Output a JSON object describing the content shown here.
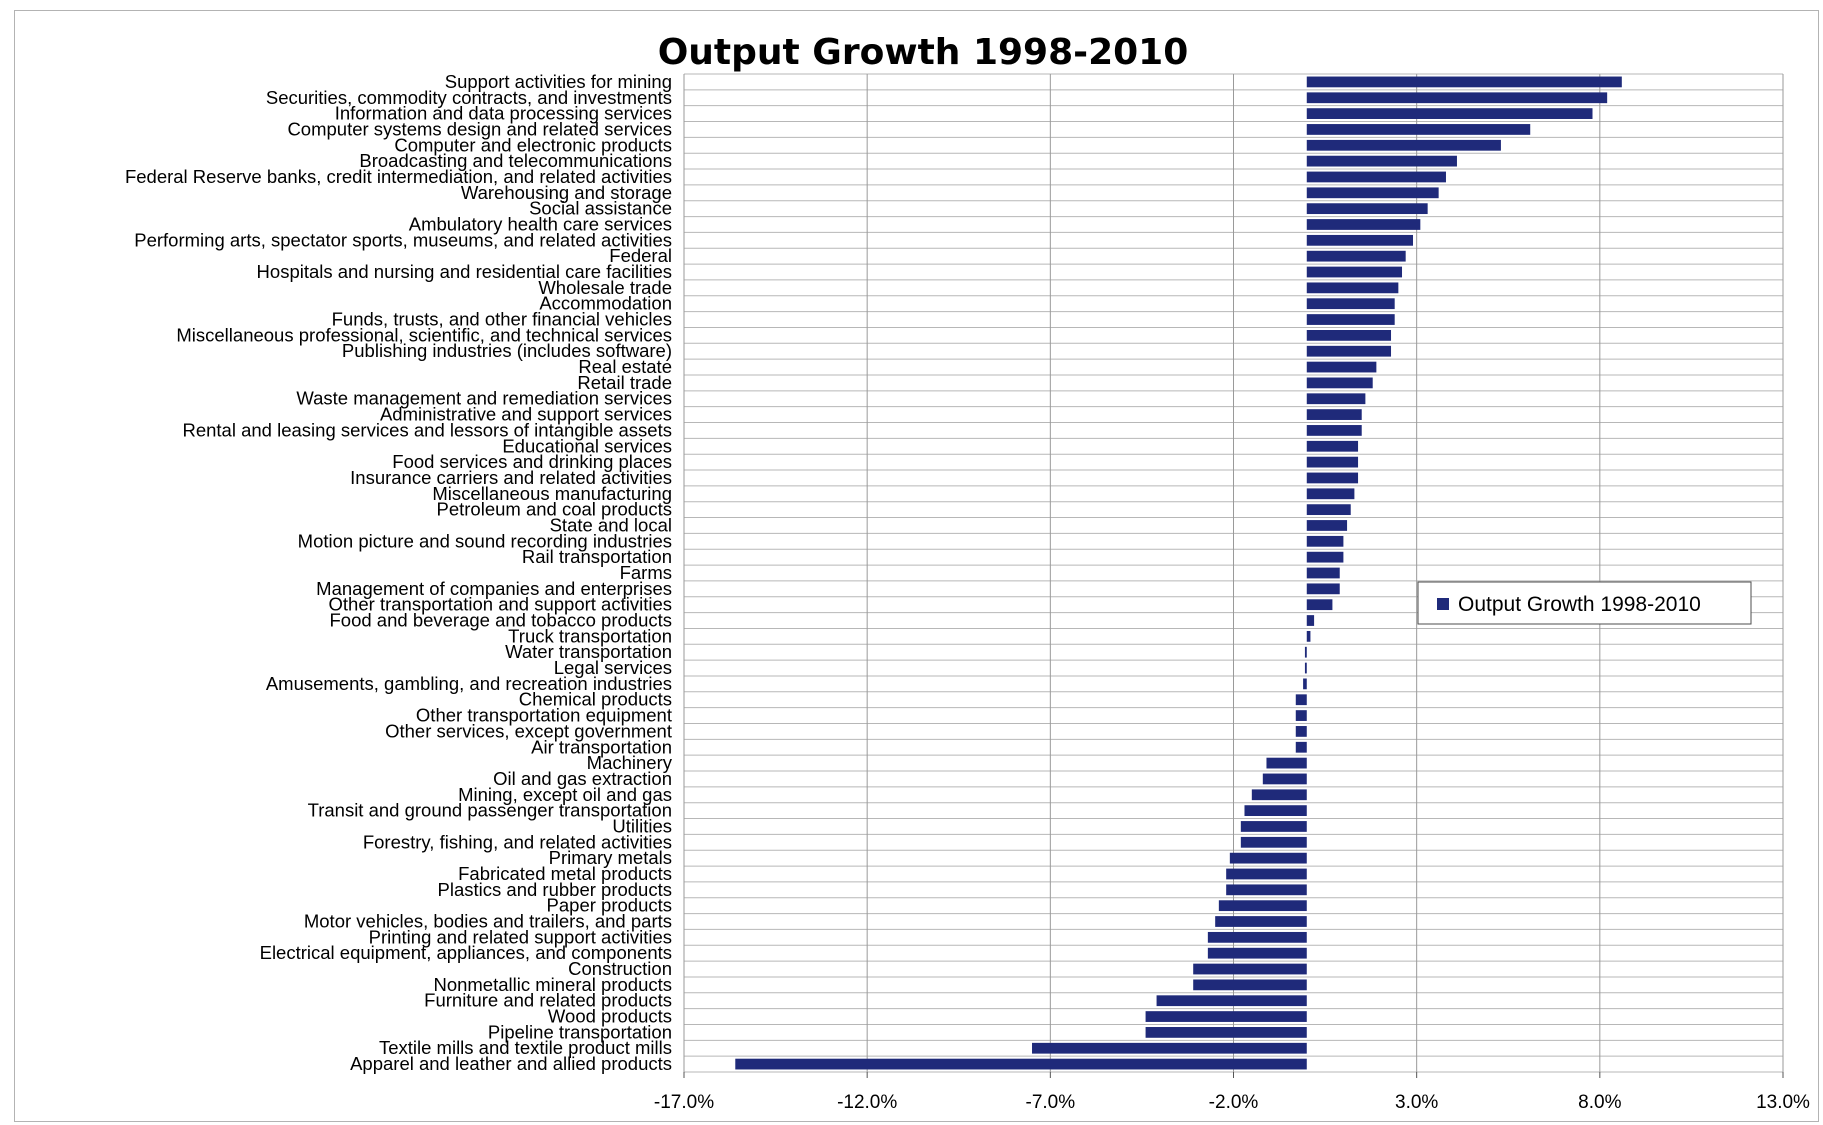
{
  "chart_data": {
    "type": "bar",
    "orientation": "horizontal",
    "title": "Output Growth 1998-2010",
    "xlabel": "",
    "ylabel": "",
    "xlim": [
      -17.0,
      13.0
    ],
    "x_ticks": [
      "-17.0%",
      "-12.0%",
      "-7.0%",
      "-2.0%",
      "3.0%",
      "8.0%",
      "13.0%"
    ],
    "grid": true,
    "legend_position": "right",
    "bar_color": "#1f2a7a",
    "categories": [
      "Support activities for mining",
      "Securities, commodity contracts, and investments",
      "Information and data processing services",
      "Computer systems design and related services",
      "Computer and electronic products",
      "Broadcasting and telecommunications",
      "Federal Reserve banks, credit intermediation, and related activities",
      "Warehousing and storage",
      "Social assistance",
      "Ambulatory health care services",
      "Performing arts, spectator sports, museums, and related activities",
      "Federal",
      "Hospitals and nursing and residential care facilities",
      "Wholesale trade",
      "Accommodation",
      "Funds, trusts, and other financial vehicles",
      "Miscellaneous professional, scientific, and technical services",
      "Publishing industries (includes software)",
      "Real estate",
      "Retail trade",
      "Waste management and remediation services",
      "Administrative and support services",
      "Rental and leasing services and lessors of intangible assets",
      "Educational services",
      "Food services and drinking places",
      "Insurance carriers and related activities",
      "Miscellaneous manufacturing",
      "Petroleum and coal products",
      "State and local",
      "Motion picture and sound recording industries",
      "Rail transportation",
      "Farms",
      "Management of companies and enterprises",
      "Other transportation and support activities",
      "Food and beverage and tobacco products",
      "Truck transportation",
      "Water transportation",
      "Legal services",
      "Amusements, gambling, and recreation industries",
      "Chemical products",
      "Other transportation equipment",
      "Other services, except government",
      "Air transportation",
      "Machinery",
      "Oil and gas extraction",
      "Mining, except oil and gas",
      "Transit and ground passenger transportation",
      "Utilities",
      "Forestry, fishing, and related activities",
      "Primary metals",
      "Fabricated metal products",
      "Plastics and rubber products",
      "Paper products",
      "Motor vehicles, bodies and trailers, and parts",
      "Printing and related support activities",
      "Electrical equipment, appliances, and components",
      "Construction",
      "Nonmetallic mineral products",
      "Furniture and related products",
      "Wood products",
      "Pipeline transportation",
      "Textile mills and textile product mills",
      "Apparel and leather and allied products"
    ],
    "series": [
      {
        "name": "Output Growth 1998-2010",
        "values": [
          8.6,
          8.2,
          7.8,
          6.1,
          5.3,
          4.1,
          3.8,
          3.6,
          3.3,
          3.1,
          2.9,
          2.7,
          2.6,
          2.5,
          2.4,
          2.4,
          2.3,
          2.3,
          1.9,
          1.8,
          1.6,
          1.5,
          1.5,
          1.4,
          1.4,
          1.4,
          1.3,
          1.2,
          1.1,
          1.0,
          1.0,
          0.9,
          0.9,
          0.7,
          0.2,
          0.1,
          -0.05,
          -0.05,
          -0.1,
          -0.3,
          -0.3,
          -0.3,
          -0.3,
          -1.1,
          -1.2,
          -1.5,
          -1.7,
          -1.8,
          -1.8,
          -2.1,
          -2.2,
          -2.2,
          -2.4,
          -2.5,
          -2.7,
          -2.7,
          -3.1,
          -3.1,
          -4.1,
          -4.4,
          -4.4,
          -7.5,
          -15.6
        ]
      }
    ]
  }
}
